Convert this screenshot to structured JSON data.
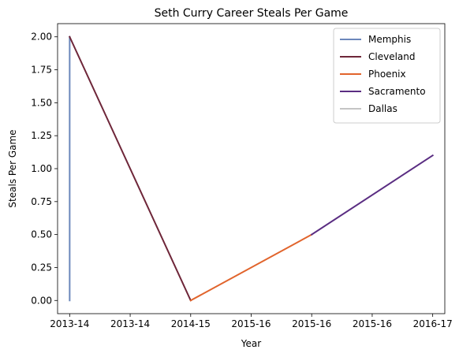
{
  "chart_data": {
    "type": "line",
    "title": "Seth Curry Career Steals Per Game",
    "xlabel": "Year",
    "ylabel": "Steals Per Game",
    "xlim": [
      -0.1,
      3.1
    ],
    "ylim": [
      -0.1,
      2.1
    ],
    "x_ticks": [
      {
        "x": 0,
        "label": "2013-14"
      },
      {
        "x": 0.5,
        "label": "2013-14"
      },
      {
        "x": 1,
        "label": "2014-15"
      },
      {
        "x": 1.5,
        "label": "2015-16"
      },
      {
        "x": 2,
        "label": "2015-16"
      },
      {
        "x": 2.5,
        "label": "2015-16"
      },
      {
        "x": 3,
        "label": "2016-17"
      }
    ],
    "y_ticks": [
      {
        "y": 0.0,
        "label": "0.00"
      },
      {
        "y": 0.25,
        "label": "0.25"
      },
      {
        "y": 0.5,
        "label": "0.50"
      },
      {
        "y": 0.75,
        "label": "0.75"
      },
      {
        "y": 1.0,
        "label": "1.00"
      },
      {
        "y": 1.25,
        "label": "1.25"
      },
      {
        "y": 1.5,
        "label": "1.50"
      },
      {
        "y": 1.75,
        "label": "1.75"
      },
      {
        "y": 2.0,
        "label": "2.00"
      }
    ],
    "grid": false,
    "legend_position": "top-right",
    "series": [
      {
        "name": "Memphis",
        "color": "#6b87bb",
        "points": [
          {
            "x": 0,
            "y": 0.0
          },
          {
            "x": 0,
            "y": 2.0
          }
        ]
      },
      {
        "name": "Cleveland",
        "color": "#6e2639",
        "points": [
          {
            "x": 0,
            "y": 2.0
          },
          {
            "x": 1,
            "y": 0.0
          }
        ]
      },
      {
        "name": "Phoenix",
        "color": "#e1642c",
        "points": [
          {
            "x": 1,
            "y": 0.0
          },
          {
            "x": 2,
            "y": 0.5
          }
        ]
      },
      {
        "name": "Sacramento",
        "color": "#5a2d82",
        "points": [
          {
            "x": 2,
            "y": 0.5
          },
          {
            "x": 3,
            "y": 1.1
          }
        ]
      },
      {
        "name": "Dallas",
        "color": "#c4c4c4",
        "points": []
      }
    ]
  }
}
